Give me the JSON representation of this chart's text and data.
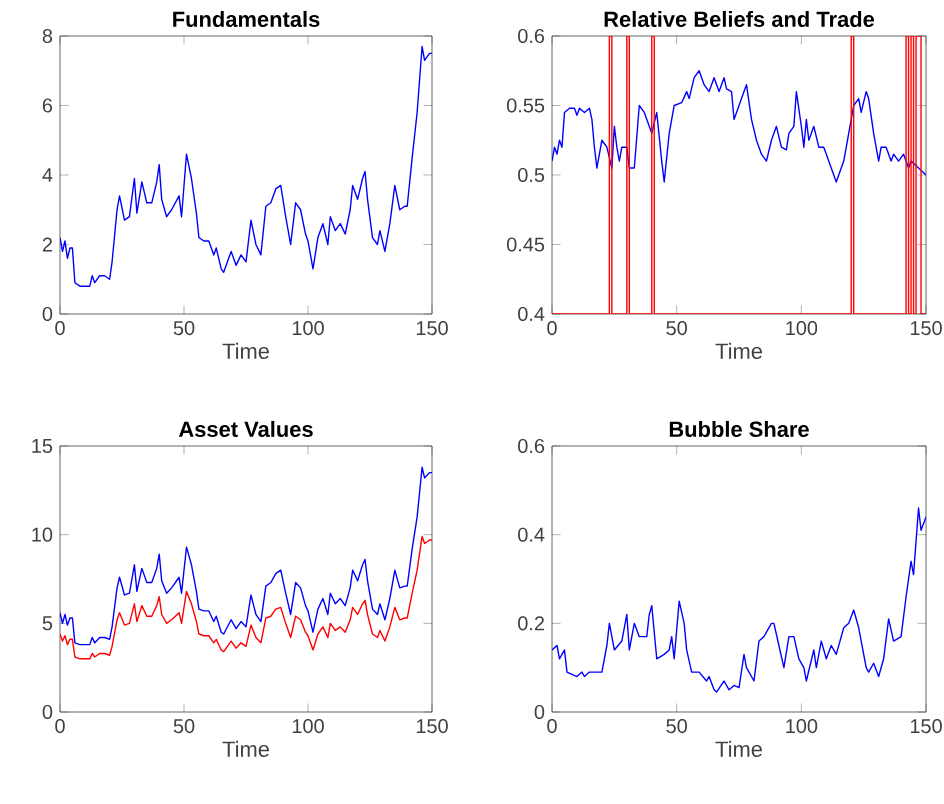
{
  "chart_data": [
    {
      "type": "line",
      "title": "Fundamentals",
      "xlabel": "Time",
      "xlim": [
        0,
        150
      ],
      "xticks": [
        0,
        50,
        100,
        150
      ],
      "ylim": [
        0,
        8
      ],
      "yticks": [
        0,
        2,
        4,
        6,
        8
      ],
      "series": [
        {
          "color": "#0000ff",
          "x": [
            0,
            1,
            2,
            3,
            4,
            5,
            6,
            8,
            10,
            12,
            13,
            14,
            16,
            18,
            20,
            21,
            23,
            24,
            26,
            28,
            30,
            31,
            33,
            35,
            37,
            39,
            40,
            41,
            43,
            45,
            48,
            49,
            51,
            53,
            55,
            56,
            58,
            60,
            62,
            63,
            65,
            66,
            69,
            71,
            73,
            75,
            77,
            79,
            81,
            83,
            85,
            87,
            89,
            91,
            93,
            95,
            97,
            99,
            100,
            102,
            104,
            106,
            108,
            109,
            111,
            113,
            115,
            117,
            118,
            120,
            122,
            123,
            124,
            126,
            128,
            129,
            131,
            133,
            135,
            137,
            139,
            140,
            142,
            144,
            146,
            147,
            149,
            150
          ],
          "values": [
            2.2,
            1.8,
            2.1,
            1.6,
            1.9,
            1.9,
            0.9,
            0.8,
            0.8,
            0.8,
            1.1,
            0.9,
            1.1,
            1.1,
            1.0,
            1.5,
            3.0,
            3.4,
            2.7,
            2.8,
            3.9,
            2.9,
            3.8,
            3.2,
            3.2,
            3.8,
            4.3,
            3.3,
            2.8,
            3.0,
            3.4,
            2.8,
            4.6,
            3.9,
            2.9,
            2.2,
            2.1,
            2.1,
            1.7,
            1.9,
            1.3,
            1.2,
            1.8,
            1.4,
            1.7,
            1.5,
            2.7,
            2.0,
            1.7,
            3.1,
            3.2,
            3.6,
            3.7,
            2.8,
            2.0,
            3.2,
            3.0,
            2.3,
            2.1,
            1.3,
            2.2,
            2.6,
            2.0,
            2.8,
            2.4,
            2.6,
            2.3,
            3.0,
            3.7,
            3.3,
            3.9,
            4.1,
            3.3,
            2.2,
            2.0,
            2.4,
            1.8,
            2.6,
            3.7,
            3.0,
            3.1,
            3.1,
            4.5,
            5.8,
            7.7,
            7.3,
            7.5,
            7.5
          ]
        }
      ]
    },
    {
      "type": "line",
      "title": "Relative Beliefs and Trade",
      "xlabel": "Time",
      "xlim": [
        0,
        150
      ],
      "xticks": [
        0,
        50,
        100,
        150
      ],
      "ylim": [
        0.4,
        0.6
      ],
      "yticks": [
        0.4,
        0.45,
        0.5,
        0.55,
        0.6
      ],
      "series": [
        {
          "color": "#0000ff",
          "x": [
            0,
            1,
            2,
            3,
            4,
            5,
            7,
            9,
            10,
            11,
            13,
            15,
            16,
            17,
            18,
            20,
            22,
            24,
            25,
            26,
            27,
            28,
            30,
            31,
            33,
            35,
            37,
            39,
            40,
            42,
            44,
            45,
            47,
            49,
            52,
            54,
            55,
            57,
            59,
            61,
            63,
            65,
            67,
            69,
            70,
            72,
            73,
            75,
            77,
            78,
            80,
            82,
            84,
            86,
            88,
            90,
            92,
            94,
            95,
            97,
            98,
            100,
            101,
            102,
            103,
            105,
            107,
            109,
            111,
            113,
            114,
            116,
            117,
            119,
            121,
            123,
            124,
            126,
            127,
            129,
            131,
            132,
            134,
            136,
            137,
            139,
            141,
            143,
            144,
            150
          ],
          "values": [
            0.51,
            0.52,
            0.515,
            0.525,
            0.52,
            0.545,
            0.548,
            0.548,
            0.543,
            0.548,
            0.545,
            0.548,
            0.54,
            0.52,
            0.505,
            0.525,
            0.52,
            0.505,
            0.535,
            0.52,
            0.51,
            0.52,
            0.52,
            0.505,
            0.505,
            0.55,
            0.545,
            0.535,
            0.53,
            0.545,
            0.51,
            0.495,
            0.53,
            0.55,
            0.552,
            0.56,
            0.555,
            0.57,
            0.575,
            0.565,
            0.56,
            0.57,
            0.56,
            0.57,
            0.562,
            0.56,
            0.54,
            0.55,
            0.56,
            0.565,
            0.54,
            0.525,
            0.515,
            0.51,
            0.525,
            0.535,
            0.52,
            0.518,
            0.53,
            0.535,
            0.56,
            0.535,
            0.52,
            0.54,
            0.525,
            0.535,
            0.52,
            0.52,
            0.51,
            0.5,
            0.495,
            0.505,
            0.51,
            0.53,
            0.55,
            0.555,
            0.545,
            0.56,
            0.555,
            0.53,
            0.51,
            0.52,
            0.52,
            0.51,
            0.515,
            0.51,
            0.515,
            0.505,
            0.51,
            0.5
          ]
        },
        {
          "color": "#ff0000",
          "x": [
            0,
            23,
            23,
            24,
            24,
            30,
            30,
            31,
            31,
            40,
            40,
            41,
            41,
            120,
            120,
            121,
            121,
            142,
            142,
            143,
            143,
            144,
            144,
            145,
            145,
            146,
            146,
            148,
            148,
            150
          ],
          "values": [
            0.4,
            0.4,
            0.6,
            0.6,
            0.4,
            0.4,
            0.6,
            0.6,
            0.4,
            0.4,
            0.6,
            0.6,
            0.4,
            0.4,
            0.6,
            0.6,
            0.4,
            0.4,
            0.6,
            0.6,
            0.4,
            0.4,
            0.6,
            0.6,
            0.4,
            0.4,
            0.6,
            0.6,
            0.4,
            0.4
          ]
        }
      ]
    },
    {
      "type": "line",
      "title": "Asset Values",
      "xlabel": "Time",
      "xlim": [
        0,
        150
      ],
      "xticks": [
        0,
        50,
        100,
        150
      ],
      "ylim": [
        0,
        15
      ],
      "yticks": [
        0,
        5,
        10,
        15
      ],
      "series": [
        {
          "color": "#0000ff",
          "x": [
            0,
            1,
            2,
            3,
            4,
            5,
            6,
            8,
            10,
            12,
            13,
            14,
            16,
            18,
            20,
            21,
            23,
            24,
            26,
            28,
            30,
            31,
            33,
            35,
            37,
            39,
            40,
            41,
            43,
            45,
            48,
            49,
            51,
            53,
            55,
            56,
            58,
            60,
            62,
            63,
            65,
            66,
            69,
            71,
            73,
            75,
            77,
            79,
            81,
            83,
            85,
            87,
            89,
            91,
            93,
            95,
            97,
            99,
            100,
            102,
            104,
            106,
            108,
            109,
            111,
            113,
            115,
            117,
            118,
            120,
            122,
            123,
            124,
            126,
            128,
            129,
            131,
            133,
            135,
            137,
            139,
            140,
            142,
            144,
            146,
            147,
            149,
            150
          ],
          "values": [
            5.6,
            5.0,
            5.5,
            4.9,
            5.3,
            5.3,
            3.9,
            3.8,
            3.8,
            3.8,
            4.2,
            3.9,
            4.2,
            4.2,
            4.1,
            4.8,
            7.0,
            7.6,
            6.6,
            6.7,
            8.3,
            6.8,
            8.1,
            7.3,
            7.3,
            8.1,
            8.9,
            7.4,
            6.7,
            7.0,
            7.6,
            6.7,
            9.3,
            8.3,
            6.8,
            5.8,
            5.7,
            5.7,
            5.1,
            5.4,
            4.5,
            4.4,
            5.2,
            4.7,
            5.1,
            4.8,
            6.6,
            5.5,
            5.1,
            7.1,
            7.3,
            7.8,
            8.0,
            6.7,
            5.5,
            7.3,
            7.0,
            6.0,
            5.7,
            4.5,
            5.8,
            6.4,
            5.5,
            6.7,
            6.1,
            6.4,
            6.0,
            7.0,
            8.0,
            7.4,
            8.3,
            8.6,
            7.4,
            5.8,
            5.5,
            6.1,
            5.2,
            6.4,
            8.0,
            7.0,
            7.1,
            7.1,
            9.2,
            11.0,
            13.8,
            13.2,
            13.5,
            13.5
          ]
        },
        {
          "color": "#ff0000",
          "x": [
            0,
            1,
            2,
            3,
            4,
            5,
            6,
            8,
            10,
            12,
            13,
            14,
            16,
            18,
            20,
            21,
            23,
            24,
            26,
            28,
            30,
            31,
            33,
            35,
            37,
            39,
            40,
            41,
            43,
            45,
            48,
            49,
            51,
            53,
            55,
            56,
            58,
            60,
            62,
            63,
            65,
            66,
            69,
            71,
            73,
            75,
            77,
            79,
            81,
            83,
            85,
            87,
            89,
            91,
            93,
            95,
            97,
            99,
            100,
            102,
            104,
            106,
            108,
            109,
            111,
            113,
            115,
            117,
            118,
            120,
            122,
            123,
            124,
            126,
            128,
            129,
            131,
            133,
            135,
            137,
            139,
            140,
            142,
            144,
            146,
            147,
            149,
            150
          ],
          "values": [
            4.4,
            4.0,
            4.3,
            3.8,
            4.1,
            4.1,
            3.1,
            3.0,
            3.0,
            3.0,
            3.3,
            3.1,
            3.3,
            3.3,
            3.2,
            3.7,
            5.2,
            5.6,
            4.9,
            5.0,
            6.1,
            5.1,
            6.0,
            5.4,
            5.4,
            6.0,
            6.5,
            5.5,
            5.0,
            5.2,
            5.6,
            5.0,
            6.8,
            6.1,
            5.1,
            4.4,
            4.3,
            4.3,
            3.9,
            4.1,
            3.5,
            3.4,
            4.0,
            3.6,
            3.9,
            3.7,
            4.9,
            4.2,
            3.9,
            5.3,
            5.4,
            5.8,
            5.9,
            5.0,
            4.2,
            5.4,
            5.2,
            4.5,
            4.3,
            3.5,
            4.4,
            4.8,
            4.2,
            5.0,
            4.6,
            4.8,
            4.5,
            5.2,
            5.9,
            5.5,
            6.1,
            6.3,
            5.5,
            4.4,
            4.2,
            4.6,
            4.0,
            4.8,
            5.9,
            5.2,
            5.3,
            5.3,
            6.7,
            8.0,
            9.9,
            9.5,
            9.7,
            9.7
          ]
        }
      ]
    },
    {
      "type": "line",
      "title": "Bubble Share",
      "xlabel": "Time",
      "xlim": [
        0,
        150
      ],
      "xticks": [
        0,
        50,
        100,
        150
      ],
      "ylim": [
        0,
        0.6
      ],
      "yticks": [
        0,
        0.2,
        0.4,
        0.6
      ],
      "series": [
        {
          "color": "#0000ff",
          "x": [
            0,
            2,
            3,
            5,
            6,
            8,
            10,
            12,
            13,
            15,
            18,
            20,
            22,
            23,
            25,
            28,
            30,
            31,
            33,
            35,
            38,
            39,
            40,
            42,
            45,
            47,
            48,
            49,
            51,
            53,
            54,
            56,
            59,
            62,
            63,
            65,
            66,
            69,
            71,
            73,
            75,
            77,
            78,
            81,
            83,
            85,
            88,
            89,
            91,
            93,
            95,
            97,
            99,
            101,
            102,
            105,
            106,
            108,
            110,
            112,
            114,
            117,
            119,
            121,
            123,
            126,
            127,
            129,
            131,
            133,
            135,
            137,
            140,
            142,
            144,
            145,
            147,
            148,
            150
          ],
          "values": [
            0.14,
            0.15,
            0.12,
            0.14,
            0.09,
            0.085,
            0.08,
            0.09,
            0.08,
            0.09,
            0.09,
            0.09,
            0.15,
            0.2,
            0.14,
            0.16,
            0.22,
            0.14,
            0.2,
            0.17,
            0.17,
            0.22,
            0.24,
            0.12,
            0.13,
            0.14,
            0.17,
            0.12,
            0.25,
            0.2,
            0.14,
            0.09,
            0.09,
            0.07,
            0.08,
            0.05,
            0.045,
            0.07,
            0.05,
            0.06,
            0.055,
            0.13,
            0.1,
            0.07,
            0.16,
            0.17,
            0.2,
            0.2,
            0.15,
            0.1,
            0.17,
            0.17,
            0.12,
            0.1,
            0.07,
            0.14,
            0.1,
            0.16,
            0.12,
            0.15,
            0.13,
            0.19,
            0.2,
            0.23,
            0.19,
            0.1,
            0.09,
            0.11,
            0.08,
            0.12,
            0.21,
            0.16,
            0.17,
            0.26,
            0.34,
            0.31,
            0.46,
            0.41,
            0.44
          ]
        }
      ]
    }
  ]
}
